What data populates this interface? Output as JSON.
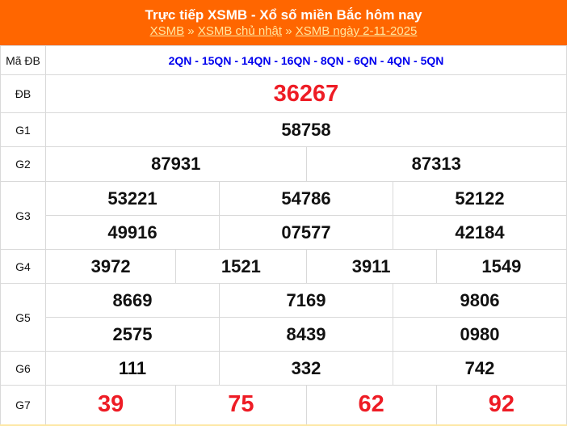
{
  "header": {
    "title": "Trực tiếp XSMB - Xổ số miền Bắc hôm nay",
    "breadcrumb": [
      "XSMB",
      "XSMB chủ nhật",
      "XSMB ngày 2-11-2025"
    ],
    "separator": "»"
  },
  "colors": {
    "header_bg": "#ff6600",
    "accent_red": "#ee1c25",
    "code_blue": "#0000ee"
  },
  "ma_db": {
    "label": "Mã ĐB",
    "codes": "2QN - 15QN - 14QN - 16QN - 8QN - 6QN - 4QN - 5QN"
  },
  "prizes": {
    "db": {
      "label": "ĐB",
      "values": [
        "36267"
      ]
    },
    "g1": {
      "label": "G1",
      "values": [
        "58758"
      ]
    },
    "g2": {
      "label": "G2",
      "values": [
        "87931",
        "87313"
      ]
    },
    "g3": {
      "label": "G3",
      "values": [
        "53221",
        "54786",
        "52122",
        "49916",
        "07577",
        "42184"
      ]
    },
    "g4": {
      "label": "G4",
      "values": [
        "3972",
        "1521",
        "3911",
        "1549"
      ]
    },
    "g5": {
      "label": "G5",
      "values": [
        "8669",
        "7169",
        "9806",
        "2575",
        "8439",
        "0980"
      ]
    },
    "g6": {
      "label": "G6",
      "values": [
        "111",
        "332",
        "742"
      ]
    },
    "g7": {
      "label": "G7",
      "values": [
        "39",
        "75",
        "62",
        "92"
      ]
    }
  }
}
